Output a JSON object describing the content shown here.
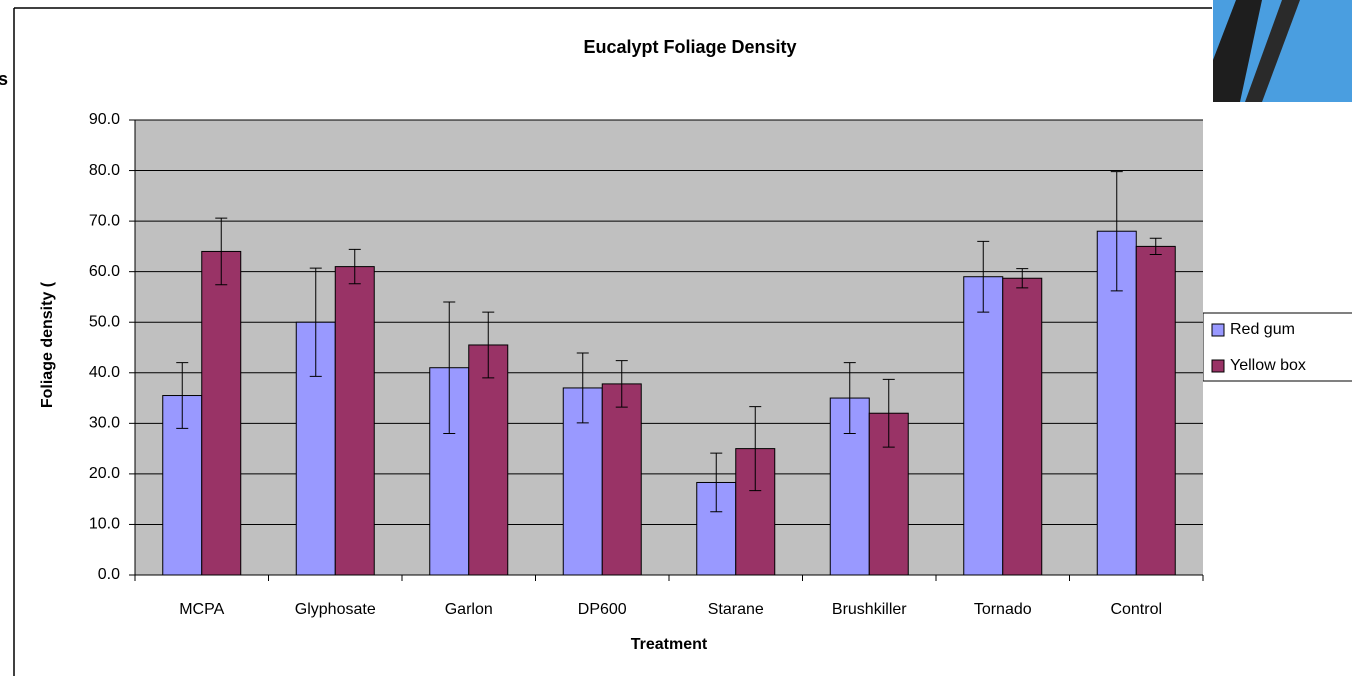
{
  "edge_text": "s",
  "chart_data": {
    "type": "bar",
    "title": "Eucalypt Foliage Density",
    "x_label": "Treatment",
    "y_label": "Foliage density (",
    "categories": [
      "MCPA",
      "Glyphosate",
      "Garlon",
      "DP600",
      "Starane",
      "Brushkiller",
      "Tornado",
      "Control"
    ],
    "series": [
      {
        "name": "Red gum",
        "color": "#9999ff",
        "values": [
          35.5,
          50,
          41,
          37,
          18.3,
          35,
          59,
          68
        ],
        "errors": [
          6.5,
          10.7,
          13,
          6.9,
          5.8,
          7,
          7,
          11.8
        ]
      },
      {
        "name": "Yellow box",
        "color": "#993366",
        "values": [
          64,
          61,
          45.5,
          37.8,
          25,
          32,
          58.7,
          65
        ],
        "errors": [
          6.6,
          3.4,
          6.5,
          4.6,
          8.3,
          6.7,
          1.9,
          1.6
        ]
      }
    ],
    "ylim": [
      0,
      90
    ],
    "yticks": [
      {
        "value": 0,
        "label": "0.0"
      },
      {
        "value": 10,
        "label": "10.0"
      },
      {
        "value": 20,
        "label": "20.0"
      },
      {
        "value": 30,
        "label": "30.0"
      },
      {
        "value": 40,
        "label": "40.0"
      },
      {
        "value": 50,
        "label": "50.0"
      },
      {
        "value": 60,
        "label": "60.0"
      },
      {
        "value": 70,
        "label": "70.0"
      },
      {
        "value": 80,
        "label": "80.0"
      },
      {
        "value": 90,
        "label": "90.0"
      }
    ],
    "grid": true,
    "plot_background": "#c0c0c0",
    "legend": "right"
  }
}
